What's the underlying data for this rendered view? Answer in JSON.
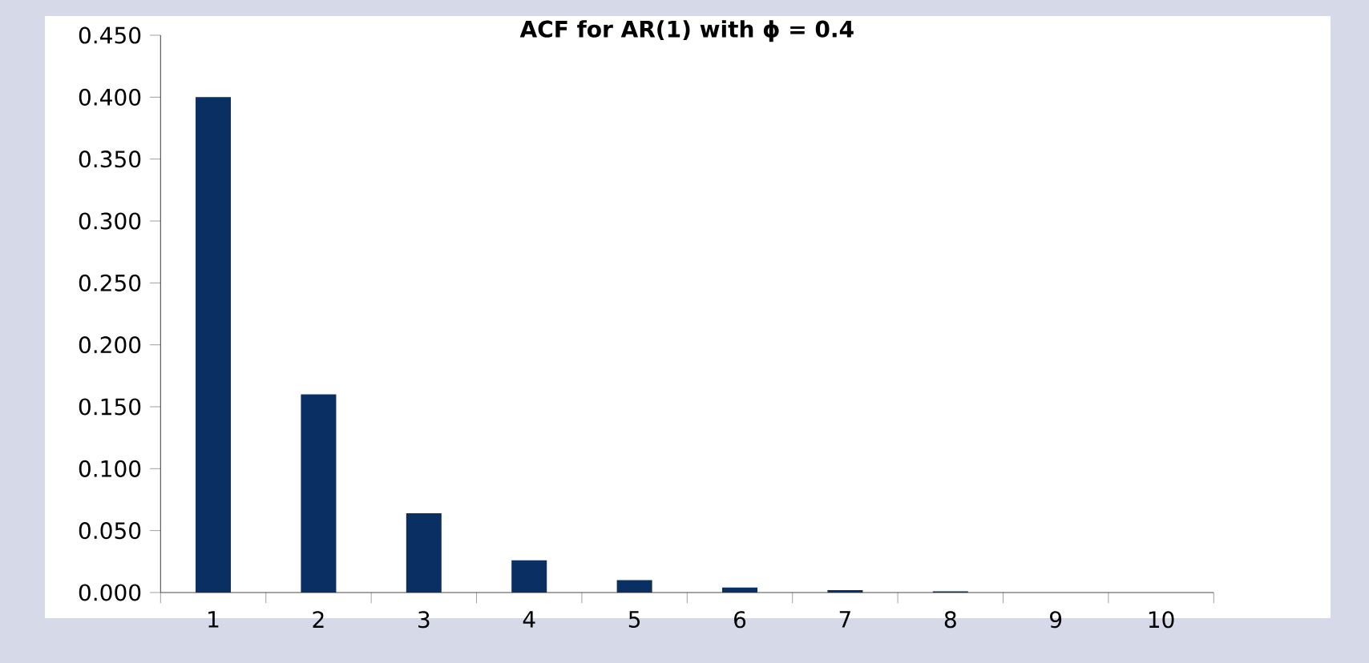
{
  "chart_data": {
    "type": "bar",
    "title": "ACF for AR(1) with ϕ = 0.4",
    "categories": [
      "1",
      "2",
      "3",
      "4",
      "5",
      "6",
      "7",
      "8",
      "9",
      "10"
    ],
    "values": [
      0.4,
      0.16,
      0.064,
      0.026,
      0.01,
      0.004,
      0.002,
      0.001,
      0,
      0
    ],
    "color": "#0a2f63",
    "ylim": [
      0,
      0.45
    ],
    "yticks": [
      {
        "value": 0,
        "label": "0.000"
      },
      {
        "value": 0.05,
        "label": "0.050"
      },
      {
        "value": 0.1,
        "label": "0.100"
      },
      {
        "value": 0.15,
        "label": "0.150"
      },
      {
        "value": 0.2,
        "label": "0.200"
      },
      {
        "value": 0.25,
        "label": "0.250"
      },
      {
        "value": 0.3,
        "label": "0.300"
      },
      {
        "value": 0.35,
        "label": "0.350"
      },
      {
        "value": 0.4,
        "label": "0.400"
      },
      {
        "value": 0.45,
        "label": "0.450"
      }
    ],
    "grid": false
  }
}
